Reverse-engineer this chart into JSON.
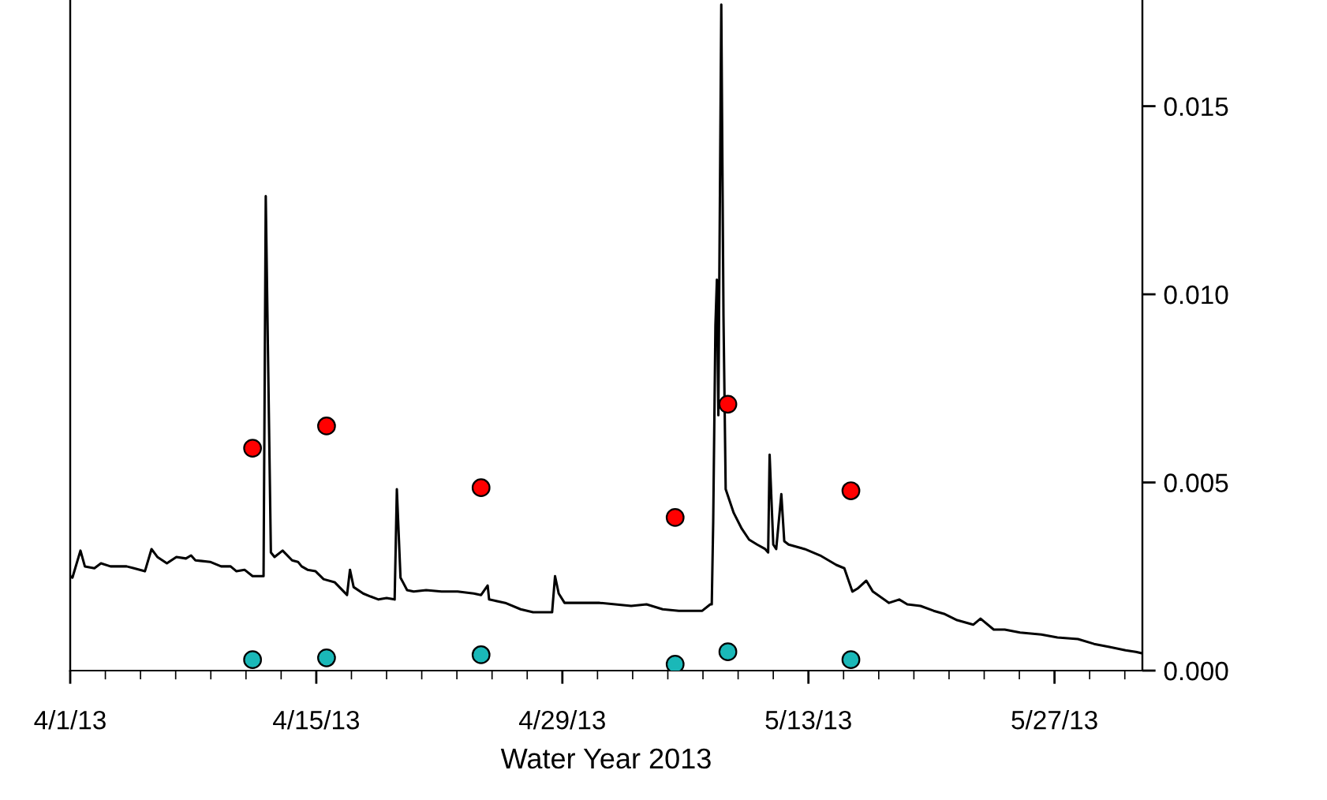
{
  "chart_data": {
    "type": "line",
    "xlabel": "Water Year 2013",
    "xlim": [
      "2013-04-01",
      "2013-06-01"
    ],
    "xticks": [
      {
        "value": "2013-04-01",
        "label": "4/1/13"
      },
      {
        "value": "2013-04-15",
        "label": "4/15/13"
      },
      {
        "value": "2013-04-29",
        "label": "4/29/13"
      },
      {
        "value": "2013-05-13",
        "label": "5/13/13"
      },
      {
        "value": "2013-05-27",
        "label": "5/27/13"
      }
    ],
    "y2lim": [
      0,
      0.0178
    ],
    "y2ticks": [
      {
        "value": 0,
        "label": "0.000"
      },
      {
        "value": 0.005,
        "label": "0.005"
      },
      {
        "value": 0.01,
        "label": "0.010"
      },
      {
        "value": 0.015,
        "label": "0.015"
      }
    ],
    "grid": false,
    "legend": false,
    "series": [
      {
        "axis": "y2",
        "color": "#000000",
        "marker": "none",
        "line_style": "solid",
        "x": [
          "2013-04-01T00:00",
          "2013-04-01T03:00",
          "2013-04-01T14:00",
          "2013-04-01T20:00",
          "2013-04-02T09:00",
          "2013-04-02T18:00",
          "2013-04-03T07:00",
          "2013-04-04T05:00",
          "2013-04-04T15:00",
          "2013-04-05T06:00",
          "2013-04-05T15:00",
          "2013-04-05T23:00",
          "2013-04-06T12:00",
          "2013-04-07T01:00",
          "2013-04-07T14:00",
          "2013-04-07T21:00",
          "2013-04-08T03:00",
          "2013-04-08T23:00",
          "2013-04-09T14:00",
          "2013-04-10T03:00",
          "2013-04-10T11:00",
          "2013-04-10T22:00",
          "2013-04-11T09:00",
          "2013-04-12T00:00",
          "2013-04-12T03:00",
          "2013-04-12T06:00",
          "2013-04-12T10:00",
          "2013-04-12T15:00",
          "2013-04-13T02:00",
          "2013-04-13T15:00",
          "2013-04-13T23:00",
          "2013-04-14T04:00",
          "2013-04-14T12:00",
          "2013-04-14T23:00",
          "2013-04-15T10:00",
          "2013-04-16T01:00",
          "2013-04-16T18:00",
          "2013-04-16T22:00",
          "2013-04-17T03:00",
          "2013-04-17T16:00",
          "2013-04-18T02:00",
          "2013-04-18T13:00",
          "2013-04-19T00:00",
          "2013-04-19T11:00",
          "2013-04-19T14:00",
          "2013-04-19T19:00",
          "2013-04-20T04:00",
          "2013-04-20T13:00",
          "2013-04-21T06:00",
          "2013-04-22T03:00",
          "2013-04-23T01:00",
          "2013-04-23T23:00",
          "2013-04-24T09:00",
          "2013-04-24T18:00",
          "2013-04-24T20:00",
          "2013-04-25T18:00",
          "2013-04-26T15:00",
          "2013-04-27T08:00",
          "2013-04-28T10:00",
          "2013-04-28T14:00",
          "2013-04-28T19:00",
          "2013-04-29T03:00",
          "2013-05-01T03:00",
          "2013-05-02T22:00",
          "2013-05-03T19:00",
          "2013-05-04T17:00",
          "2013-05-05T15:00",
          "2013-05-06T12:00",
          "2013-05-06T23:00",
          "2013-05-07T10:00",
          "2013-05-07T12:00",
          "2013-05-07T14:00",
          "2013-05-07T17:00",
          "2013-05-07T19:00",
          "2013-05-07T21:00",
          "2013-05-08T01:00",
          "2013-05-08T04:00",
          "2013-05-08T07:00",
          "2013-05-08T18:00",
          "2013-05-09T05:00",
          "2013-05-09T15:00",
          "2013-05-10T02:00",
          "2013-05-10T13:00",
          "2013-05-10T17:00",
          "2013-05-10T19:00",
          "2013-05-11T00:00",
          "2013-05-11T04:00",
          "2013-05-11T11:00",
          "2013-05-11T15:00",
          "2013-05-11T21:00",
          "2013-05-12T19:00",
          "2013-05-13T16:00",
          "2013-05-14T14:00",
          "2013-05-15T01:00",
          "2013-05-15T12:00",
          "2013-05-15T19:00",
          "2013-05-16T07:00",
          "2013-05-16T16:00",
          "2013-05-17T14:00",
          "2013-05-18T04:00",
          "2013-05-18T15:00",
          "2013-05-19T09:00",
          "2013-05-20T03:00",
          "2013-05-20T17:00",
          "2013-05-21T11:00",
          "2013-05-22T09:00",
          "2013-05-22T19:00",
          "2013-05-23T13:00",
          "2013-05-24T04:00",
          "2013-05-25T01:00",
          "2013-05-26T06:00",
          "2013-05-27T04:00",
          "2013-05-28T08:00",
          "2013-05-29T06:00",
          "2013-05-30T03:00",
          "2013-05-31T01:00",
          "2013-05-31T15:00",
          "2013-06-01T00:00"
        ],
        "values": [
          0.00251,
          0.00247,
          0.00319,
          0.00277,
          0.00272,
          0.00285,
          0.00277,
          0.00277,
          0.00272,
          0.00264,
          0.00323,
          0.00302,
          0.00285,
          0.00302,
          0.00298,
          0.00306,
          0.00293,
          0.00289,
          0.00277,
          0.00277,
          0.00264,
          0.00268,
          0.00251,
          0.00251,
          0.01261,
          0.00851,
          0.00314,
          0.00302,
          0.00319,
          0.00293,
          0.00289,
          0.00277,
          0.00268,
          0.00264,
          0.00243,
          0.00235,
          0.00201,
          0.00268,
          0.00222,
          0.00205,
          0.00197,
          0.00189,
          0.00193,
          0.00189,
          0.00482,
          0.00247,
          0.00214,
          0.0021,
          0.00214,
          0.0021,
          0.0021,
          0.00205,
          0.00201,
          0.00226,
          0.00189,
          0.0018,
          0.00163,
          0.00155,
          0.00155,
          0.00251,
          0.00205,
          0.0018,
          0.0018,
          0.00172,
          0.00176,
          0.00163,
          0.00159,
          0.00159,
          0.00159,
          0.00176,
          0.00176,
          0.00398,
          0.00918,
          0.01039,
          0.00679,
          0.0177,
          0.00943,
          0.00482,
          0.00419,
          0.00377,
          0.00348,
          0.00335,
          0.00323,
          0.00314,
          0.00574,
          0.00335,
          0.00323,
          0.00469,
          0.00344,
          0.00335,
          0.00323,
          0.00306,
          0.00281,
          0.00272,
          0.0021,
          0.00218,
          0.00239,
          0.0021,
          0.0018,
          0.00189,
          0.00176,
          0.00172,
          0.00159,
          0.00151,
          0.00134,
          0.00122,
          0.00138,
          0.00109,
          0.00109,
          0.00101,
          0.00096,
          0.00088,
          0.00084,
          0.00071,
          0.00063,
          0.00054,
          0.0005,
          0.00046
        ]
      },
      {
        "type": "scatter",
        "axis": "y2",
        "color": "#ff0000",
        "marker": "circle",
        "x": [
          "2013-04-11T09:00",
          "2013-04-15T14:00",
          "2013-04-24T09:00",
          "2013-05-05T10:00",
          "2013-05-08T10:00",
          "2013-05-15T10:00"
        ],
        "values": [
          0.00591,
          0.0065,
          0.00486,
          0.00407,
          0.00708,
          0.00478
        ]
      },
      {
        "type": "scatter",
        "axis": "y2",
        "color": "#1ab8b8",
        "marker": "circle",
        "x": [
          "2013-04-11T09:00",
          "2013-04-15T14:00",
          "2013-04-24T09:00",
          "2013-05-05T10:00",
          "2013-05-08T10:00",
          "2013-05-15T10:00"
        ],
        "values": [
          0.00029,
          0.00034,
          0.00042,
          0.00017,
          0.0005,
          0.00029
        ]
      }
    ]
  }
}
